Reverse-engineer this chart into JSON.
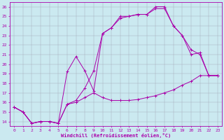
{
  "xlabel": "Windchill (Refroidissement éolien,°C)",
  "ylabel": "",
  "xlim": [
    -0.5,
    23.5
  ],
  "ylim": [
    13.5,
    26.5
  ],
  "yticks": [
    14,
    15,
    16,
    17,
    18,
    19,
    20,
    21,
    22,
    23,
    24,
    25,
    26
  ],
  "xticks": [
    0,
    1,
    2,
    3,
    4,
    5,
    6,
    7,
    8,
    9,
    10,
    11,
    12,
    13,
    14,
    15,
    16,
    17,
    18,
    19,
    20,
    21,
    22,
    23
  ],
  "bg_color": "#cbe9f0",
  "line_color": "#aa00aa",
  "grid_color": "#9999aa",
  "lines": [
    {
      "x": [
        0,
        1,
        2,
        3,
        4,
        5,
        6,
        7,
        8,
        9,
        10,
        11,
        12,
        13,
        14,
        15,
        16,
        17,
        18,
        19,
        20,
        21,
        22,
        23
      ],
      "y": [
        15.5,
        15.0,
        13.8,
        14.0,
        14.0,
        13.8,
        15.8,
        16.0,
        16.5,
        17.0,
        16.5,
        16.2,
        16.2,
        16.2,
        16.3,
        16.5,
        16.7,
        17.0,
        17.3,
        17.8,
        18.2,
        18.8,
        18.8,
        18.8
      ]
    },
    {
      "x": [
        0,
        1,
        2,
        3,
        4,
        5,
        6,
        7,
        8,
        9,
        10,
        11,
        12,
        13,
        14,
        15,
        16,
        17,
        18,
        19,
        20,
        21,
        22,
        23
      ],
      "y": [
        15.5,
        15.0,
        13.8,
        14.0,
        14.0,
        13.8,
        15.8,
        16.2,
        17.5,
        19.3,
        23.2,
        23.8,
        24.8,
        25.0,
        25.2,
        25.2,
        25.8,
        25.8,
        24.0,
        23.0,
        21.5,
        21.0,
        18.8,
        18.8
      ]
    },
    {
      "x": [
        0,
        1,
        2,
        3,
        4,
        5,
        6,
        7,
        8,
        9,
        10,
        11,
        12,
        13,
        14,
        15,
        16,
        17,
        18,
        19,
        20,
        21,
        22,
        23
      ],
      "y": [
        15.5,
        15.0,
        13.8,
        14.0,
        14.0,
        13.8,
        19.2,
        20.8,
        19.3,
        17.2,
        23.2,
        23.8,
        25.0,
        25.0,
        25.2,
        25.2,
        26.0,
        26.0,
        24.0,
        23.0,
        21.0,
        21.2,
        18.8,
        18.8
      ]
    }
  ]
}
